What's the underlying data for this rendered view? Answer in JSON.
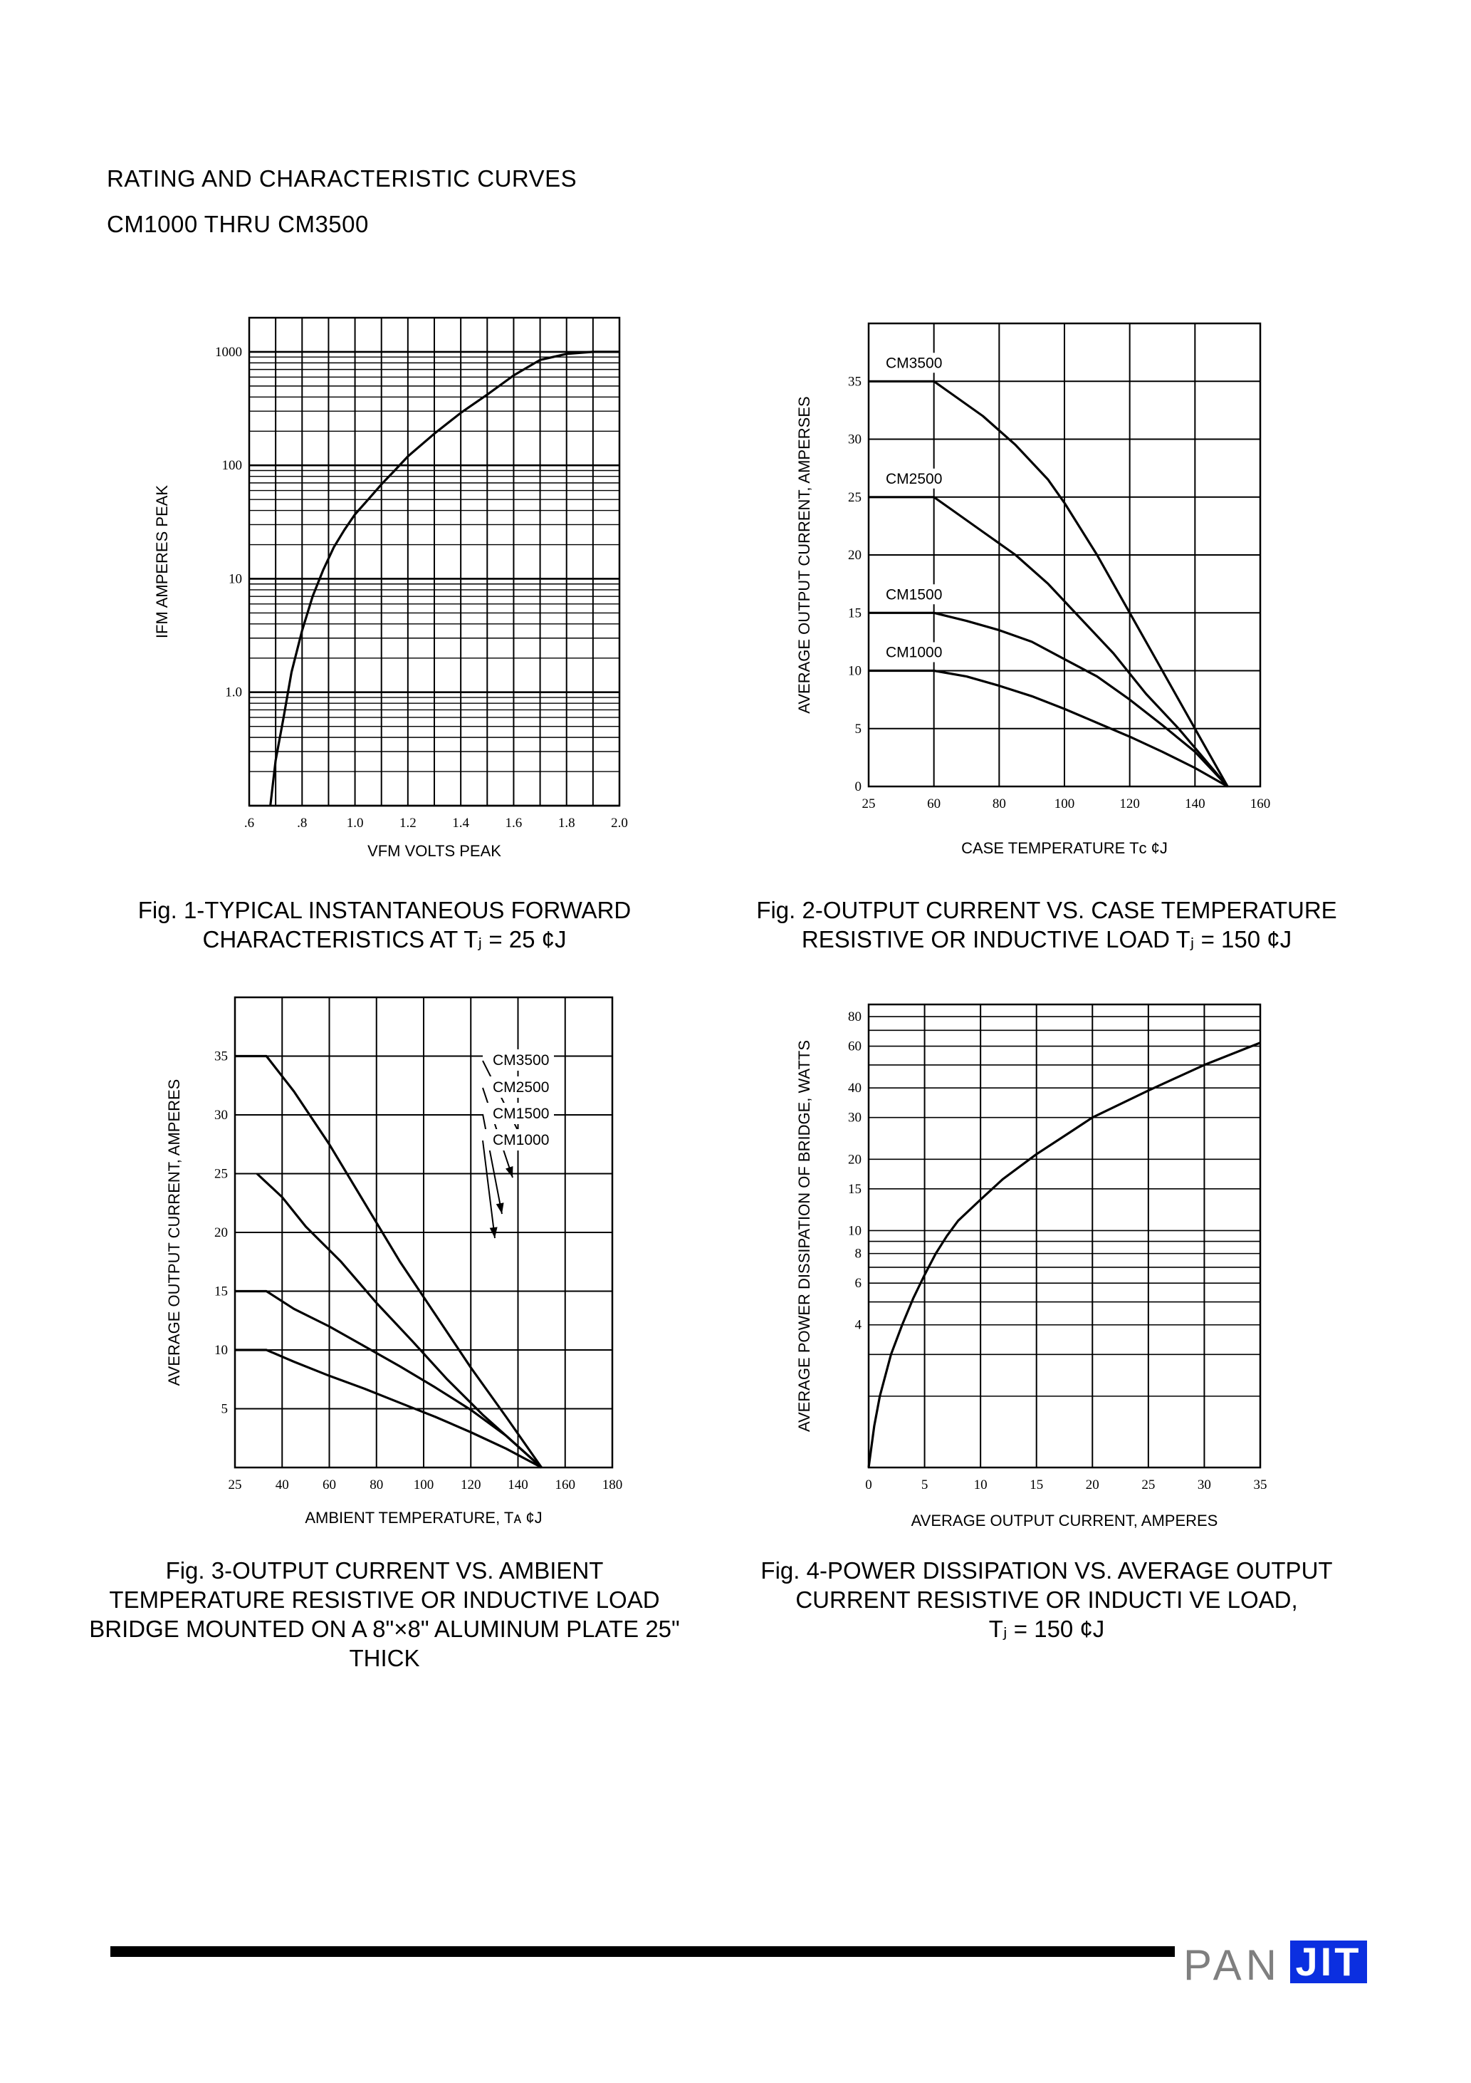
{
  "header": {
    "line1": "RATING AND CHARACTERISTIC CURVES",
    "line2": "CM1000 THRU CM3500"
  },
  "charts": [
    {
      "id": "fig1",
      "caption": [
        "Fig. 1-TYPICAL INSTANTANEOUS FORWARD",
        "CHARACTERISTICS AT Tⱼ = 25 ¢J"
      ],
      "chart_data": {
        "type": "line",
        "xlabel": "VFM VOLTS PEAK",
        "ylabel": "IFM AMPERES PEAK",
        "xlim": [
          0.6,
          2.0
        ],
        "ylim": [
          0.1,
          2000
        ],
        "yscale": "log",
        "xticks": [
          ".6",
          ".8",
          "1.0",
          "1.2",
          "1.4",
          "1.6",
          "1.8",
          "2.0"
        ],
        "yticks": [
          "1.0",
          "10",
          "100",
          "1000"
        ],
        "grid": true,
        "series": [
          {
            "x": [
              0.68,
              0.7,
              0.73,
              0.76,
              0.8,
              0.84,
              0.88,
              0.92,
              0.96,
              1.0,
              1.05,
              1.1,
              1.15,
              1.2,
              1.3,
              1.4,
              1.5,
              1.6,
              1.7,
              1.8,
              1.9,
              2.0
            ],
            "y": [
              0.1,
              0.25,
              0.6,
              1.5,
              3.5,
              7,
              12,
              19,
              27,
              37,
              50,
              68,
              90,
              120,
              190,
              290,
              420,
              620,
              850,
              960,
              1000,
              1000
            ]
          }
        ]
      }
    },
    {
      "id": "fig2",
      "caption": [
        "Fig. 2-OUTPUT CURRENT VS. CASE TEMPERATURE",
        "RESISTIVE OR INDUCTIVE LOAD Tⱼ = 150 ¢J"
      ],
      "chart_data": {
        "type": "line",
        "xlabel": "CASE TEMPERATURE Tᴄ ¢J",
        "ylabel": "AVERAGE OUTPUT CURRENT, AMPERSES",
        "xlim": [
          25,
          160
        ],
        "ylim": [
          0,
          40
        ],
        "xticks": [
          25,
          60,
          80,
          100,
          120,
          140,
          160
        ],
        "yticks": [
          0,
          5,
          10,
          15,
          20,
          25,
          30,
          35
        ],
        "grid": true,
        "series": [
          {
            "name": "CM3500",
            "x": [
              25,
              60,
              65,
              75,
              85,
              95,
              100,
              110,
              120,
              130,
              140,
              150
            ],
            "y": [
              35,
              35,
              34,
              32,
              29.5,
              26.5,
              24.5,
              20,
              15,
              10,
              5,
              0
            ]
          },
          {
            "name": "CM2500",
            "x": [
              25,
              60,
              65,
              75,
              85,
              95,
              105,
              115,
              125,
              135,
              150
            ],
            "y": [
              25,
              25,
              24,
              22,
              20,
              17.5,
              14.5,
              11.5,
              8,
              5,
              0
            ]
          },
          {
            "name": "CM1500",
            "x": [
              25,
              60,
              70,
              80,
              90,
              100,
              110,
              120,
              130,
              140,
              150
            ],
            "y": [
              15,
              15,
              14.3,
              13.5,
              12.5,
              11,
              9.5,
              7.5,
              5.3,
              3,
              0
            ]
          },
          {
            "name": "CM1000",
            "x": [
              25,
              60,
              70,
              80,
              90,
              100,
              110,
              120,
              130,
              140,
              150
            ],
            "y": [
              10,
              10,
              9.5,
              8.7,
              7.8,
              6.7,
              5.5,
              4.3,
              3,
              1.6,
              0
            ]
          }
        ]
      }
    },
    {
      "id": "fig3",
      "caption": [
        "Fig. 3-OUTPUT CURRENT VS. AMBIENT",
        "TEMPERATURE RESISTIVE OR INDUCTIVE LOAD",
        "BRIDGE MOUNTED ON A 8\"×8\" ALUMINUM PLATE 25\"",
        "THICK"
      ],
      "chart_data": {
        "type": "line",
        "xlabel": "AMBIENT TEMPERATURE, Tᴀ ¢J",
        "ylabel": "AVERAGE OUTPUT CURRENT, AMPERES",
        "xlim": [
          25,
          180
        ],
        "ylim": [
          0,
          40
        ],
        "xticks": [
          25,
          40,
          60,
          80,
          100,
          120,
          140,
          160,
          180
        ],
        "yticks": [
          5,
          10,
          15,
          20,
          25,
          30,
          35
        ],
        "grid": true,
        "series": [
          {
            "name": "CM3500",
            "x": [
              25,
              35,
              45,
              60,
              75,
              90,
              105,
              120,
              135,
              150
            ],
            "y": [
              35,
              35,
              32,
              27.5,
              22.5,
              17.5,
              13,
              8.5,
              4.3,
              0
            ]
          },
          {
            "name": "CM2500",
            "x": [
              32,
              40,
              50,
              65,
              80,
              95,
              110,
              125,
              140,
              150
            ],
            "y": [
              25,
              23,
              20.5,
              17.5,
              14,
              10.8,
              7.5,
              4.5,
              1.8,
              0
            ]
          },
          {
            "name": "CM1500",
            "x": [
              25,
              35,
              45,
              60,
              75,
              90,
              105,
              120,
              135,
              150
            ],
            "y": [
              15,
              15,
              13.5,
              12,
              10.3,
              8.6,
              6.8,
              4.9,
              2.7,
              0
            ]
          },
          {
            "name": "CM1000",
            "x": [
              25,
              35,
              45,
              60,
              75,
              90,
              105,
              120,
              135,
              150
            ],
            "y": [
              10,
              10,
              9,
              7.8,
              6.7,
              5.5,
              4.3,
              3,
              1.6,
              0
            ]
          }
        ]
      }
    },
    {
      "id": "fig4",
      "caption": [
        "Fig. 4-POWER DISSIPATION VS. AVERAGE OUTPUT",
        "CURRENT RESISTIVE OR INDUCTI VE LOAD,",
        "Tⱼ = 150 ¢J"
      ],
      "chart_data": {
        "type": "line",
        "xlabel": "AVERAGE OUTPUT CURRENT, AMPERES",
        "ylabel": "AVERAGE POWER DISSIPATION OF BRIDGE, WATTS",
        "xlim": [
          0,
          35
        ],
        "ylim": [
          1,
          90
        ],
        "yscale": "log",
        "xticks": [
          0,
          5,
          10,
          15,
          20,
          25,
          30,
          35
        ],
        "yticks": [
          4,
          6,
          8,
          10,
          15,
          20,
          30,
          40,
          60,
          80
        ],
        "grid": true,
        "series": [
          {
            "x": [
              0,
              0.5,
              1,
              2,
              3,
              4,
              5,
              6,
              7,
              8,
              10,
              12,
              15,
              18,
              20,
              25,
              30,
              35
            ],
            "y": [
              1,
              1.5,
              2,
              3,
              4,
              5.2,
              6.5,
              8,
              9.5,
              11,
              13.5,
              16.5,
              21,
              26,
              30,
              39,
              50,
              62
            ]
          }
        ]
      }
    }
  ],
  "logo": {
    "left": "PAN",
    "right": "JIT"
  }
}
